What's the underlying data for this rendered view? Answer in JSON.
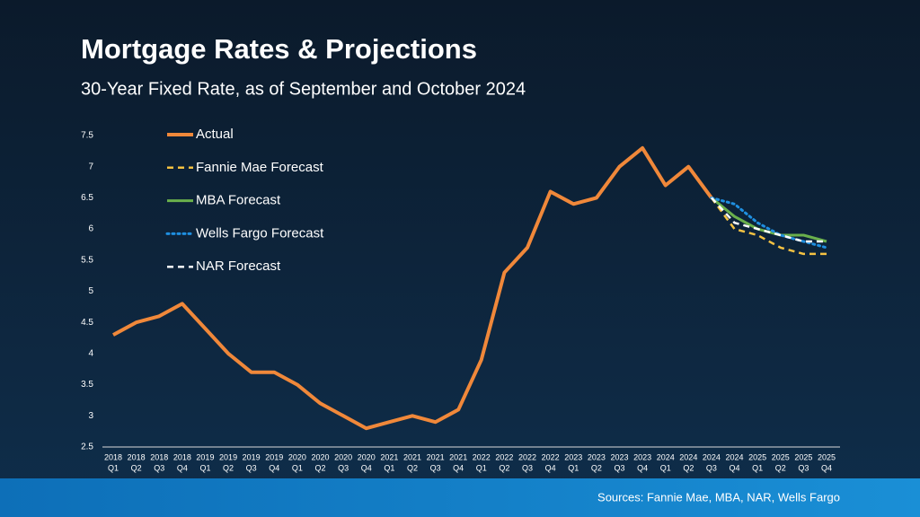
{
  "chart_data": {
    "type": "line",
    "title": "Mortgage Rates & Projections",
    "subtitle": "30-Year Fixed Rate, as of September and October 2024",
    "source": "Sources: Fannie Mae, MBA, NAR, Wells Fargo",
    "categories": [
      [
        "2018",
        "Q1"
      ],
      [
        "2018",
        "Q2"
      ],
      [
        "2018",
        "Q3"
      ],
      [
        "2018",
        "Q4"
      ],
      [
        "2019",
        "Q1"
      ],
      [
        "2019",
        "Q2"
      ],
      [
        "2019",
        "Q3"
      ],
      [
        "2019",
        "Q4"
      ],
      [
        "2020",
        "Q1"
      ],
      [
        "2020",
        "Q2"
      ],
      [
        "2020",
        "Q3"
      ],
      [
        "2020",
        "Q4"
      ],
      [
        "2021",
        "Q1"
      ],
      [
        "2021",
        "Q2"
      ],
      [
        "2021",
        "Q3"
      ],
      [
        "2021",
        "Q4"
      ],
      [
        "2022",
        "Q1"
      ],
      [
        "2022",
        "Q2"
      ],
      [
        "2022",
        "Q3"
      ],
      [
        "2022",
        "Q4"
      ],
      [
        "2023",
        "Q1"
      ],
      [
        "2023",
        "Q2"
      ],
      [
        "2023",
        "Q3"
      ],
      [
        "2023",
        "Q4"
      ],
      [
        "2024",
        "Q1"
      ],
      [
        "2024",
        "Q2"
      ],
      [
        "2024",
        "Q3"
      ],
      [
        "2024",
        "Q4"
      ],
      [
        "2025",
        "Q1"
      ],
      [
        "2025",
        "Q2"
      ],
      [
        "2025",
        "Q3"
      ],
      [
        "2025",
        "Q4"
      ]
    ],
    "series": [
      {
        "name": "Actual",
        "color": "#f0883a",
        "line_style": "solid",
        "width": 4,
        "values": [
          4.3,
          4.5,
          4.6,
          4.8,
          4.4,
          4.0,
          3.7,
          3.7,
          3.5,
          3.2,
          3.0,
          2.8,
          2.9,
          3.0,
          2.9,
          3.1,
          3.9,
          5.3,
          5.7,
          6.6,
          6.4,
          6.5,
          7.0,
          7.3,
          6.7,
          7.0,
          6.5,
          null,
          null,
          null,
          null,
          null
        ]
      },
      {
        "name": "Fannie Mae Forecast",
        "color": "#f5c242",
        "line_style": "dashed",
        "width": 2.5,
        "values": [
          null,
          null,
          null,
          null,
          null,
          null,
          null,
          null,
          null,
          null,
          null,
          null,
          null,
          null,
          null,
          null,
          null,
          null,
          null,
          null,
          null,
          null,
          null,
          null,
          null,
          null,
          6.5,
          6.0,
          5.9,
          5.7,
          5.6,
          5.6
        ]
      },
      {
        "name": "MBA Forecast",
        "color": "#6ab04c",
        "line_style": "solid",
        "width": 3,
        "values": [
          null,
          null,
          null,
          null,
          null,
          null,
          null,
          null,
          null,
          null,
          null,
          null,
          null,
          null,
          null,
          null,
          null,
          null,
          null,
          null,
          null,
          null,
          null,
          null,
          null,
          null,
          6.5,
          6.2,
          6.0,
          5.9,
          5.9,
          5.8
        ]
      },
      {
        "name": "Wells Fargo Forecast",
        "color": "#1f8fe0",
        "line_style": "dotted",
        "width": 3,
        "values": [
          null,
          null,
          null,
          null,
          null,
          null,
          null,
          null,
          null,
          null,
          null,
          null,
          null,
          null,
          null,
          null,
          null,
          null,
          null,
          null,
          null,
          null,
          null,
          null,
          null,
          null,
          6.5,
          6.4,
          6.1,
          5.9,
          5.8,
          5.7
        ]
      },
      {
        "name": "NAR Forecast",
        "color": "#ffffff",
        "line_style": "dashed",
        "width": 2.5,
        "values": [
          null,
          null,
          null,
          null,
          null,
          null,
          null,
          null,
          null,
          null,
          null,
          null,
          null,
          null,
          null,
          null,
          null,
          null,
          null,
          null,
          null,
          null,
          null,
          null,
          null,
          null,
          6.5,
          6.1,
          6.0,
          5.9,
          5.8,
          5.8
        ]
      }
    ],
    "ylim": [
      2.5,
      7.5
    ],
    "yticks": [
      2.5,
      3,
      3.5,
      4,
      4.5,
      5,
      5.5,
      6,
      6.5,
      7,
      7.5
    ],
    "grid": false
  }
}
